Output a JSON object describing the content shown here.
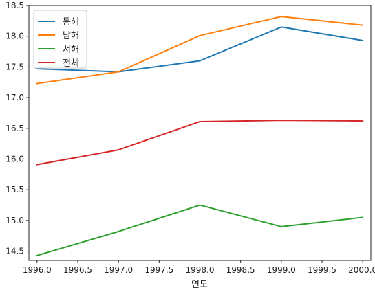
{
  "chart_data": {
    "type": "line",
    "x": [
      1996.0,
      1997.0,
      1998.0,
      1999.0,
      2000.0
    ],
    "series": [
      {
        "name": "동해",
        "color": "#1f77b4",
        "values": [
          17.47,
          17.42,
          17.6,
          18.15,
          17.93
        ]
      },
      {
        "name": "남해",
        "color": "#ff7f0e",
        "values": [
          17.23,
          17.42,
          18.01,
          18.32,
          18.18
        ]
      },
      {
        "name": "서해",
        "color": "#2ca02c",
        "values": [
          14.43,
          14.82,
          15.25,
          14.9,
          15.05
        ]
      },
      {
        "name": "전체",
        "color": "#d62728",
        "values": [
          15.91,
          16.15,
          16.61,
          16.63,
          16.62
        ]
      }
    ],
    "xlabel": "연도",
    "ylabel": "",
    "xlim": [
      1995.9,
      2000.1
    ],
    "ylim": [
      14.35,
      18.5
    ],
    "xticks": [
      "1996.0",
      "1996.5",
      "1997.0",
      "1997.5",
      "1998.0",
      "1998.5",
      "1999.0",
      "1999.5",
      "2000.0"
    ],
    "yticks": [
      "14.5",
      "15.0",
      "15.5",
      "16.0",
      "16.5",
      "17.0",
      "17.5",
      "18.0",
      "18.5"
    ],
    "grid": false,
    "legend": "top-left"
  }
}
